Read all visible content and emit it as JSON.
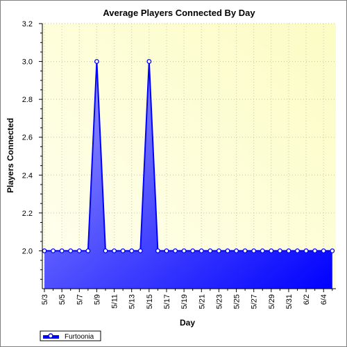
{
  "chart_data": {
    "type": "area",
    "title": "Average Players Connected By Day",
    "xlabel": "Day",
    "ylabel": "Players Connected",
    "ylim": [
      1.8,
      3.2
    ],
    "yticks": [
      "2.0",
      "2.2",
      "2.4",
      "2.6",
      "2.8",
      "3.0",
      "3.2"
    ],
    "grid": true,
    "legend_position": "bottom-left",
    "x": [
      "5/3",
      "5/4",
      "5/5",
      "5/6",
      "5/7",
      "5/8",
      "5/9",
      "5/10",
      "5/11",
      "5/12",
      "5/13",
      "5/14",
      "5/15",
      "5/16",
      "5/17",
      "5/18",
      "5/19",
      "5/20",
      "5/21",
      "5/22",
      "5/23",
      "5/24",
      "5/25",
      "5/26",
      "5/27",
      "5/28",
      "5/29",
      "5/30",
      "5/31",
      "6/1",
      "6/2",
      "6/3",
      "6/4",
      "6/5"
    ],
    "xtick_labels": [
      "5/3",
      "5/5",
      "5/7",
      "5/9",
      "5/11",
      "5/13",
      "5/15",
      "5/17",
      "5/19",
      "5/21",
      "5/23",
      "5/25",
      "5/27",
      "5/29",
      "5/31",
      "6/2",
      "6/4"
    ],
    "series": [
      {
        "name": "Furtoonia",
        "values": [
          2,
          2,
          2,
          2,
          2,
          2,
          3,
          2,
          2,
          2,
          2,
          2,
          3,
          2,
          2,
          2,
          2,
          2,
          2,
          2,
          2,
          2,
          2,
          2,
          2,
          2,
          2,
          2,
          2,
          2,
          2,
          2,
          2,
          2
        ]
      }
    ],
    "colors": {
      "plot_background_start": "#fffff0",
      "plot_background_end": "#fcfcc4",
      "area_light": "#a0a0ff",
      "area_dark": "#0000ff",
      "line": "#0000ff",
      "marker_fill": "#ffffff",
      "grid": "#c8c8a0"
    }
  }
}
